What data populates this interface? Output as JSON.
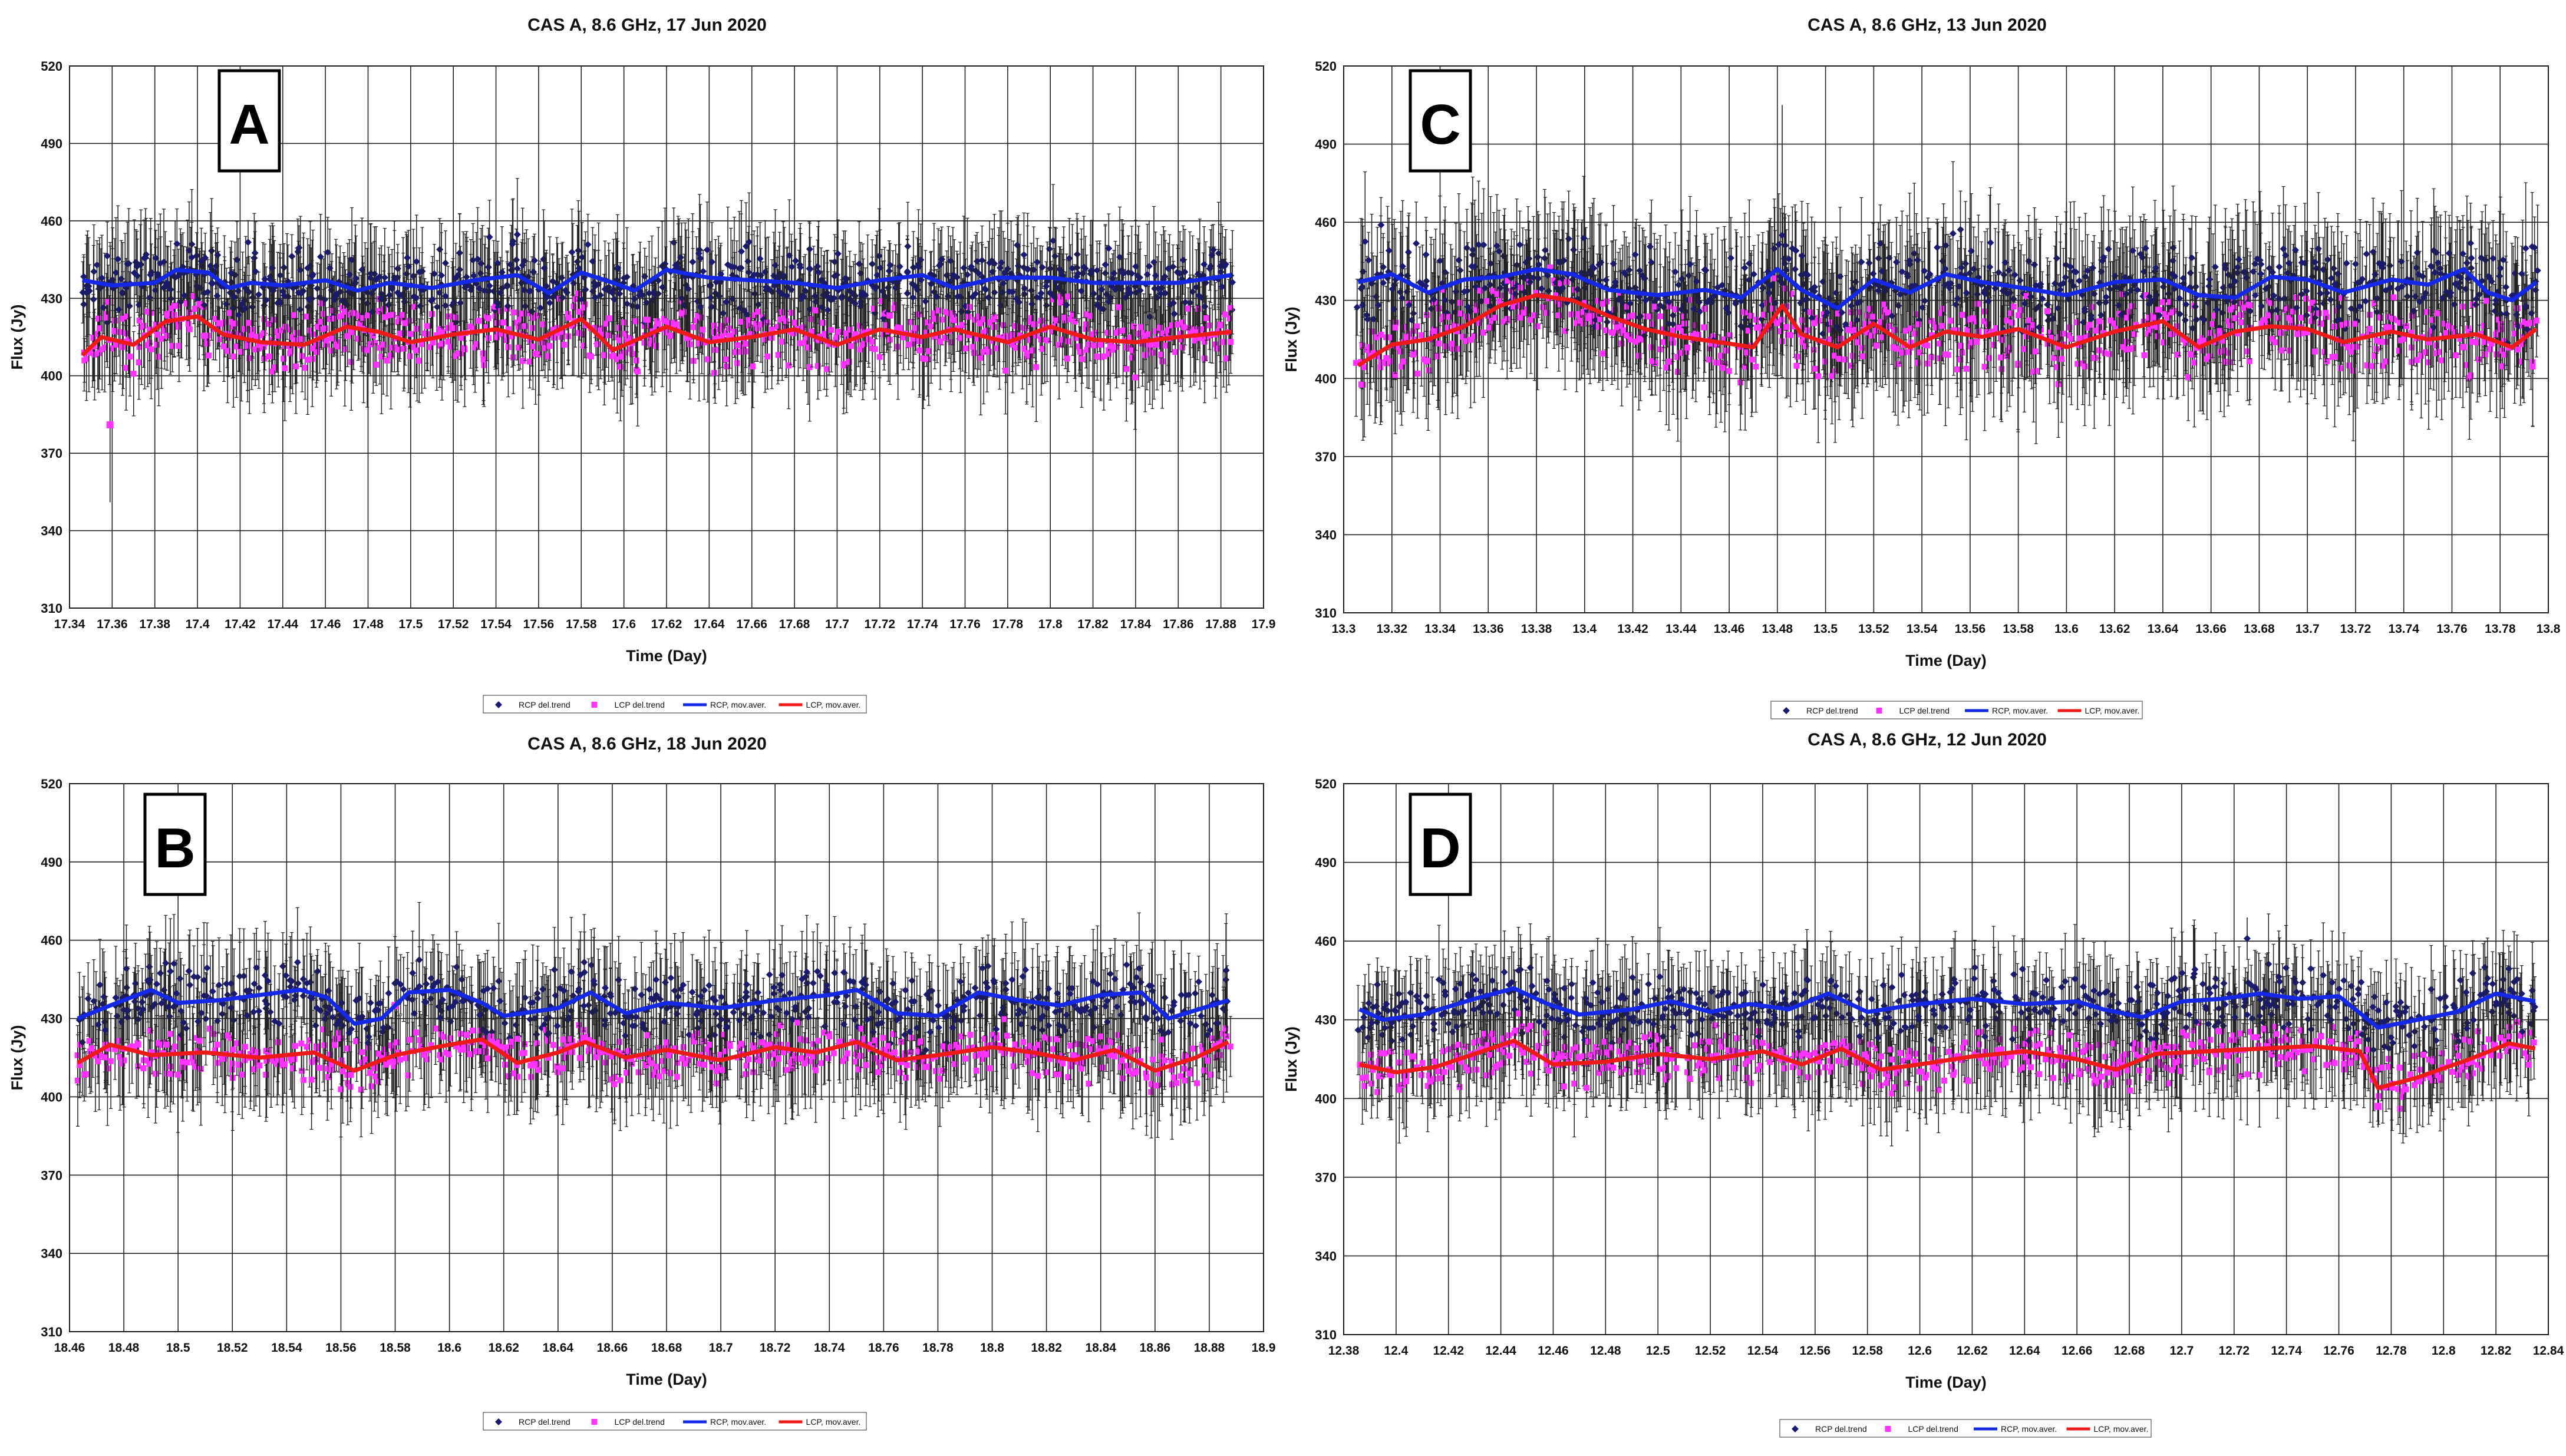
{
  "legend_labels": [
    "RCP del.trend",
    "LCP del.trend",
    "RCP, mov.aver.",
    "LCP, mov.aver."
  ],
  "colors": {
    "rcp_points": "#1a1a6e",
    "lcp_points": "#ff33ff",
    "rcp_line": "#1428e6",
    "lcp_line": "#ee1a1a",
    "grid": "#000000",
    "minor_grid": "#aaaaaa",
    "error_bar": "#222222"
  },
  "chart_data": [
    {
      "panel": "A",
      "type": "scatter",
      "title": "CAS A, 8.6 GHz, 17 Jun 2020",
      "xlabel": "Time (Day)",
      "ylabel": "Flux (Jy)",
      "xlim": [
        17.34,
        17.9
      ],
      "ylim": [
        310,
        520
      ],
      "xticks": [
        "17.34",
        "17.36",
        "17.38",
        "17.4",
        "17.42",
        "17.44",
        "17.46",
        "17.48",
        "17.5",
        "17.52",
        "17.54",
        "17.56",
        "17.58",
        "17.6",
        "17.62",
        "17.64",
        "17.66",
        "17.68",
        "17.7",
        "17.72",
        "17.74",
        "17.76",
        "17.78",
        "17.8",
        "17.82",
        "17.84",
        "17.86",
        "17.88",
        "17.9"
      ],
      "yticks": [
        "310",
        "340",
        "370",
        "400",
        "430",
        "460",
        "490",
        "520"
      ],
      "x_start": 17.346,
      "x_end": 17.885,
      "rcp_trend": [
        [
          17.346,
          437
        ],
        [
          17.36,
          435
        ],
        [
          17.38,
          436
        ],
        [
          17.39,
          441
        ],
        [
          17.405,
          440
        ],
        [
          17.415,
          434
        ],
        [
          17.425,
          436
        ],
        [
          17.44,
          435
        ],
        [
          17.46,
          437
        ],
        [
          17.475,
          433
        ],
        [
          17.49,
          436
        ],
        [
          17.51,
          434
        ],
        [
          17.53,
          437
        ],
        [
          17.55,
          439
        ],
        [
          17.565,
          432
        ],
        [
          17.58,
          440
        ],
        [
          17.595,
          436
        ],
        [
          17.605,
          433
        ],
        [
          17.62,
          441
        ],
        [
          17.64,
          438
        ],
        [
          17.66,
          437
        ],
        [
          17.68,
          436
        ],
        [
          17.7,
          434
        ],
        [
          17.72,
          437
        ],
        [
          17.74,
          439
        ],
        [
          17.755,
          434
        ],
        [
          17.775,
          438
        ],
        [
          17.8,
          438
        ],
        [
          17.82,
          436
        ],
        [
          17.84,
          436
        ],
        [
          17.86,
          436
        ],
        [
          17.885,
          439
        ]
      ],
      "lcp_trend": [
        [
          17.346,
          408
        ],
        [
          17.355,
          415
        ],
        [
          17.37,
          412
        ],
        [
          17.385,
          421
        ],
        [
          17.4,
          423
        ],
        [
          17.412,
          416
        ],
        [
          17.43,
          413
        ],
        [
          17.45,
          412
        ],
        [
          17.47,
          419
        ],
        [
          17.485,
          417
        ],
        [
          17.5,
          413
        ],
        [
          17.52,
          416
        ],
        [
          17.54,
          418
        ],
        [
          17.56,
          414
        ],
        [
          17.58,
          422
        ],
        [
          17.595,
          410
        ],
        [
          17.62,
          419
        ],
        [
          17.64,
          413
        ],
        [
          17.66,
          415
        ],
        [
          17.68,
          418
        ],
        [
          17.7,
          412
        ],
        [
          17.72,
          418
        ],
        [
          17.74,
          415
        ],
        [
          17.755,
          418
        ],
        [
          17.78,
          413
        ],
        [
          17.8,
          419
        ],
        [
          17.82,
          414
        ],
        [
          17.84,
          413
        ],
        [
          17.86,
          415
        ],
        [
          17.885,
          417
        ]
      ],
      "rcp_spread": 9,
      "lcp_spread": 8,
      "err_mean": 16,
      "seed": 11,
      "outliers": [
        {
          "series": "lcp",
          "x": 17.359,
          "y": 381,
          "err": 30
        }
      ]
    },
    {
      "panel": "B",
      "type": "scatter",
      "title": "CAS A, 8.6 GHz, 18 Jun 2020",
      "xlabel": "Time (Day)",
      "ylabel": "Flux (Jy)",
      "xlim": [
        18.46,
        18.9
      ],
      "ylim": [
        310,
        520
      ],
      "xticks": [
        "18.46",
        "18.48",
        "18.5",
        "18.52",
        "18.54",
        "18.56",
        "18.58",
        "18.6",
        "18.62",
        "18.64",
        "18.66",
        "18.68",
        "18.7",
        "18.72",
        "18.74",
        "18.76",
        "18.78",
        "18.8",
        "18.82",
        "18.84",
        "18.86",
        "18.88",
        "18.9"
      ],
      "yticks": [
        "310",
        "340",
        "370",
        "400",
        "430",
        "460",
        "490",
        "520"
      ],
      "x_start": 18.463,
      "x_end": 18.887,
      "rcp_trend": [
        [
          18.463,
          430
        ],
        [
          18.475,
          435
        ],
        [
          18.49,
          441
        ],
        [
          18.5,
          436
        ],
        [
          18.515,
          437
        ],
        [
          18.53,
          439
        ],
        [
          18.545,
          441
        ],
        [
          18.555,
          438
        ],
        [
          18.565,
          428
        ],
        [
          18.575,
          430
        ],
        [
          18.585,
          440
        ],
        [
          18.6,
          441
        ],
        [
          18.612,
          436
        ],
        [
          18.62,
          431
        ],
        [
          18.64,
          434
        ],
        [
          18.652,
          440
        ],
        [
          18.665,
          432
        ],
        [
          18.68,
          436
        ],
        [
          18.7,
          434
        ],
        [
          18.72,
          437
        ],
        [
          18.74,
          439
        ],
        [
          18.75,
          441
        ],
        [
          18.765,
          432
        ],
        [
          18.78,
          431
        ],
        [
          18.795,
          440
        ],
        [
          18.81,
          437
        ],
        [
          18.825,
          435
        ],
        [
          18.84,
          439
        ],
        [
          18.855,
          440
        ],
        [
          18.865,
          430
        ],
        [
          18.887,
          437
        ]
      ],
      "lcp_trend": [
        [
          18.463,
          413
        ],
        [
          18.475,
          420
        ],
        [
          18.49,
          416
        ],
        [
          18.51,
          417
        ],
        [
          18.53,
          415
        ],
        [
          18.55,
          417
        ],
        [
          18.565,
          410
        ],
        [
          18.58,
          416
        ],
        [
          18.6,
          420
        ],
        [
          18.612,
          422
        ],
        [
          18.625,
          413
        ],
        [
          18.64,
          417
        ],
        [
          18.65,
          421
        ],
        [
          18.665,
          415
        ],
        [
          18.68,
          418
        ],
        [
          18.7,
          414
        ],
        [
          18.72,
          419
        ],
        [
          18.735,
          417
        ],
        [
          18.75,
          421
        ],
        [
          18.765,
          414
        ],
        [
          18.78,
          416
        ],
        [
          18.8,
          419
        ],
        [
          18.815,
          417
        ],
        [
          18.83,
          414
        ],
        [
          18.845,
          418
        ],
        [
          18.86,
          410
        ],
        [
          18.875,
          415
        ],
        [
          18.887,
          421
        ]
      ],
      "rcp_spread": 9,
      "lcp_spread": 7,
      "err_mean": 16,
      "seed": 23,
      "outliers": [
        {
          "series": "lcp",
          "x": 18.58,
          "y": 435,
          "err": 10
        }
      ]
    },
    {
      "panel": "C",
      "type": "scatter",
      "title": "CAS A, 8.6 GHz, 13 Jun 2020",
      "xlabel": "Time (Day)",
      "ylabel": "Flux (Jy)",
      "xlim": [
        13.3,
        13.8
      ],
      "ylim": [
        310,
        520
      ],
      "xticks": [
        "13.3",
        "13.32",
        "13.34",
        "13.36",
        "13.38",
        "13.4",
        "13.42",
        "13.44",
        "13.46",
        "13.48",
        "13.5",
        "13.52",
        "13.54",
        "13.56",
        "13.58",
        "13.6",
        "13.62",
        "13.64",
        "13.66",
        "13.68",
        "13.7",
        "13.72",
        "13.74",
        "13.76",
        "13.78",
        "13.8"
      ],
      "yticks": [
        "310",
        "340",
        "370",
        "400",
        "430",
        "460",
        "490",
        "520"
      ],
      "x_start": 13.306,
      "x_end": 13.795,
      "rcp_trend": [
        [
          13.306,
          437
        ],
        [
          13.32,
          440
        ],
        [
          13.335,
          433
        ],
        [
          13.35,
          438
        ],
        [
          13.365,
          439
        ],
        [
          13.38,
          442
        ],
        [
          13.395,
          440
        ],
        [
          13.41,
          434
        ],
        [
          13.43,
          432
        ],
        [
          13.45,
          434
        ],
        [
          13.465,
          431
        ],
        [
          13.48,
          442
        ],
        [
          13.49,
          434
        ],
        [
          13.505,
          427
        ],
        [
          13.52,
          438
        ],
        [
          13.535,
          433
        ],
        [
          13.55,
          440
        ],
        [
          13.565,
          437
        ],
        [
          13.58,
          435
        ],
        [
          13.6,
          432
        ],
        [
          13.62,
          437
        ],
        [
          13.64,
          438
        ],
        [
          13.655,
          432
        ],
        [
          13.67,
          431
        ],
        [
          13.685,
          439
        ],
        [
          13.7,
          438
        ],
        [
          13.715,
          433
        ],
        [
          13.735,
          438
        ],
        [
          13.75,
          436
        ],
        [
          13.765,
          442
        ],
        [
          13.775,
          433
        ],
        [
          13.785,
          430
        ],
        [
          13.795,
          437
        ]
      ],
      "lcp_trend": [
        [
          13.306,
          405
        ],
        [
          13.32,
          413
        ],
        [
          13.335,
          415
        ],
        [
          13.35,
          420
        ],
        [
          13.365,
          428
        ],
        [
          13.38,
          432
        ],
        [
          13.395,
          430
        ],
        [
          13.41,
          424
        ],
        [
          13.425,
          419
        ],
        [
          13.44,
          416
        ],
        [
          13.455,
          414
        ],
        [
          13.47,
          412
        ],
        [
          13.482,
          428
        ],
        [
          13.49,
          417
        ],
        [
          13.505,
          412
        ],
        [
          13.52,
          421
        ],
        [
          13.535,
          412
        ],
        [
          13.55,
          418
        ],
        [
          13.565,
          416
        ],
        [
          13.58,
          419
        ],
        [
          13.6,
          412
        ],
        [
          13.62,
          418
        ],
        [
          13.64,
          422
        ],
        [
          13.655,
          412
        ],
        [
          13.67,
          418
        ],
        [
          13.685,
          420
        ],
        [
          13.7,
          419
        ],
        [
          13.715,
          414
        ],
        [
          13.735,
          418
        ],
        [
          13.75,
          415
        ],
        [
          13.77,
          417
        ],
        [
          13.785,
          412
        ],
        [
          13.795,
          419
        ]
      ],
      "rcp_spread": 11,
      "lcp_spread": 10,
      "err_mean": 20,
      "seed": 37,
      "outliers": [
        {
          "series": "rcp",
          "x": 13.482,
          "y": 455,
          "err": 50
        },
        {
          "series": "rcp",
          "x": 13.6,
          "y": 432,
          "err": 36
        }
      ]
    },
    {
      "panel": "D",
      "type": "scatter",
      "title": "CAS A, 8.6 GHz, 12 Jun 2020",
      "xlabel": "Time (Day)",
      "ylabel": "Flux (Jy)",
      "xlim": [
        12.38,
        12.84
      ],
      "ylim": [
        310,
        520
      ],
      "xticks": [
        "12.38",
        "12.4",
        "12.42",
        "12.44",
        "12.46",
        "12.48",
        "12.5",
        "12.52",
        "12.54",
        "12.56",
        "12.58",
        "12.6",
        "12.62",
        "12.64",
        "12.66",
        "12.68",
        "12.7",
        "12.72",
        "12.74",
        "12.76",
        "12.78",
        "12.8",
        "12.82",
        "12.84"
      ],
      "yticks": [
        "310",
        "340",
        "370",
        "400",
        "430",
        "460",
        "490",
        "520"
      ],
      "x_start": 12.386,
      "x_end": 12.835,
      "rcp_trend": [
        [
          12.386,
          434
        ],
        [
          12.395,
          430
        ],
        [
          12.41,
          432
        ],
        [
          12.43,
          438
        ],
        [
          12.445,
          442
        ],
        [
          12.458,
          436
        ],
        [
          12.47,
          432
        ],
        [
          12.49,
          434
        ],
        [
          12.505,
          437
        ],
        [
          12.52,
          433
        ],
        [
          12.535,
          436
        ],
        [
          12.55,
          434
        ],
        [
          12.565,
          440
        ],
        [
          12.58,
          433
        ],
        [
          12.6,
          436
        ],
        [
          12.62,
          438
        ],
        [
          12.64,
          436
        ],
        [
          12.66,
          437
        ],
        [
          12.67,
          434
        ],
        [
          12.685,
          431
        ],
        [
          12.7,
          437
        ],
        [
          12.715,
          438
        ],
        [
          12.73,
          440
        ],
        [
          12.745,
          438
        ],
        [
          12.76,
          439
        ],
        [
          12.775,
          427
        ],
        [
          12.79,
          430
        ],
        [
          12.805,
          433
        ],
        [
          12.82,
          440
        ],
        [
          12.835,
          437
        ]
      ],
      "lcp_trend": [
        [
          12.386,
          413
        ],
        [
          12.4,
          410
        ],
        [
          12.415,
          412
        ],
        [
          12.43,
          417
        ],
        [
          12.445,
          422
        ],
        [
          12.46,
          413
        ],
        [
          12.48,
          414
        ],
        [
          12.5,
          417
        ],
        [
          12.52,
          415
        ],
        [
          12.54,
          418
        ],
        [
          12.555,
          413
        ],
        [
          12.57,
          419
        ],
        [
          12.585,
          411
        ],
        [
          12.6,
          413
        ],
        [
          12.62,
          416
        ],
        [
          12.64,
          418
        ],
        [
          12.66,
          415
        ],
        [
          12.675,
          411
        ],
        [
          12.69,
          417
        ],
        [
          12.71,
          418
        ],
        [
          12.73,
          419
        ],
        [
          12.75,
          420
        ],
        [
          12.768,
          418
        ],
        [
          12.775,
          404
        ],
        [
          12.79,
          408
        ],
        [
          12.81,
          415
        ],
        [
          12.825,
          421
        ],
        [
          12.835,
          419
        ]
      ],
      "rcp_spread": 9,
      "lcp_spread": 7,
      "err_mean": 15,
      "seed": 53,
      "outliers": [
        {
          "series": "rcp",
          "x": 12.725,
          "y": 461,
          "err": 8
        },
        {
          "series": "lcp",
          "x": 12.775,
          "y": 397,
          "err": 8
        }
      ]
    }
  ],
  "panel_letters": [
    "A",
    "B",
    "C",
    "D"
  ]
}
